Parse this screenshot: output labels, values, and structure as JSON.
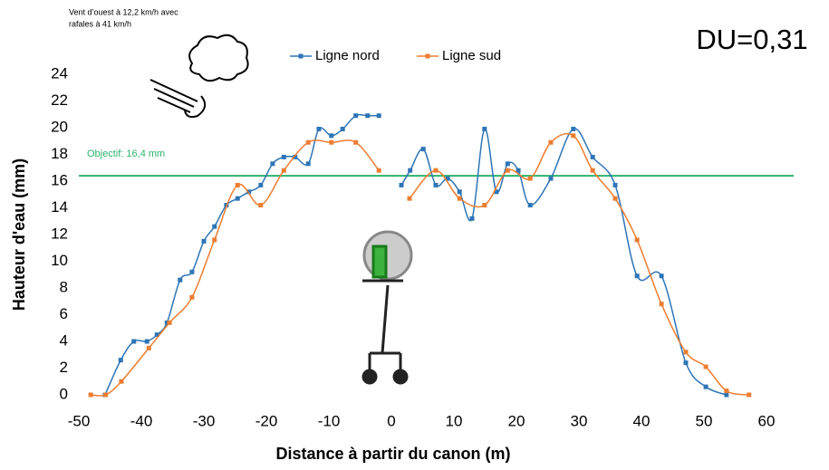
{
  "chart_data": {
    "type": "line",
    "annotation": "Vent d’ouest à 12,2 km/h avec",
    "annotation2": "rafales à 41 km/h",
    "du_label": "DU=0,31",
    "xlabel": "Distance à partir du canon (m)",
    "ylabel": "Hauteur d'eau (mm)",
    "xlim": [
      -50,
      60
    ],
    "xticks": [
      -50,
      -40,
      -30,
      -20,
      -10,
      0,
      10,
      20,
      30,
      40,
      50,
      60
    ],
    "ylim": [
      0,
      24
    ],
    "yticks": [
      0,
      2,
      4,
      6,
      8,
      10,
      12,
      14,
      16,
      18,
      20,
      22,
      24
    ],
    "grid": false,
    "target": {
      "value": 16.4,
      "label": "Objectif: 16,4 mm",
      "color": "#2db36b"
    },
    "series": [
      {
        "name": "Ligne nord",
        "color": "#2e75b6",
        "x": [
          -45.8,
          -43.3,
          -41.2,
          -39.1,
          -37.5,
          -35.9,
          -33.8,
          -31.9,
          -30.0,
          -28.3,
          -26.4,
          -24.6,
          -22.8,
          -20.9,
          -19.0,
          -17.2,
          -15.4,
          -13.3,
          -11.6,
          -9.6,
          -7.8,
          -5.7,
          -3.8,
          -2.0,
          null,
          1.6,
          3.0,
          5.1,
          7.1,
          9.0,
          10.9,
          12.9,
          14.9,
          16.8,
          18.6,
          20.3,
          22.2,
          25.5,
          29.1,
          32.2,
          35.8,
          39.3,
          43.2,
          47.1,
          50.3,
          53.6
        ],
        "values": [
          0,
          2.6,
          4.0,
          4.0,
          4.5,
          5.4,
          8.6,
          9.2,
          11.5,
          12.6,
          14.2,
          14.7,
          15.2,
          15.7,
          17.3,
          17.8,
          17.8,
          17.3,
          19.9,
          19.4,
          19.9,
          20.9,
          20.9,
          20.9,
          null,
          15.7,
          16.8,
          18.4,
          15.7,
          16.2,
          15.2,
          13.2,
          19.9,
          15.2,
          17.3,
          16.8,
          14.2,
          16.2,
          19.9,
          17.8,
          15.7,
          8.9,
          8.9,
          2.4,
          0.6,
          0
        ]
      },
      {
        "name": "Ligne sud",
        "color": "#ed7d31",
        "x": [
          -48.1,
          -45.7,
          -43.2,
          -38.8,
          -35.5,
          -31.9,
          -28.3,
          -24.6,
          -20.9,
          -17.2,
          -13.3,
          -9.6,
          -5.7,
          -2.0,
          null,
          2.9,
          7.1,
          10.9,
          14.9,
          18.6,
          22.2,
          25.5,
          29.1,
          32.2,
          35.8,
          39.3,
          43.2,
          47.1,
          50.3,
          53.6,
          57.2
        ],
        "values": [
          0,
          0,
          1.0,
          3.5,
          5.4,
          7.3,
          11.6,
          15.7,
          14.2,
          16.8,
          18.9,
          18.9,
          18.9,
          16.8,
          null,
          14.7,
          16.8,
          14.7,
          14.2,
          16.8,
          16.2,
          18.9,
          19.4,
          16.8,
          14.7,
          11.6,
          6.8,
          3.2,
          2.1,
          0.3,
          0
        ]
      }
    ]
  }
}
